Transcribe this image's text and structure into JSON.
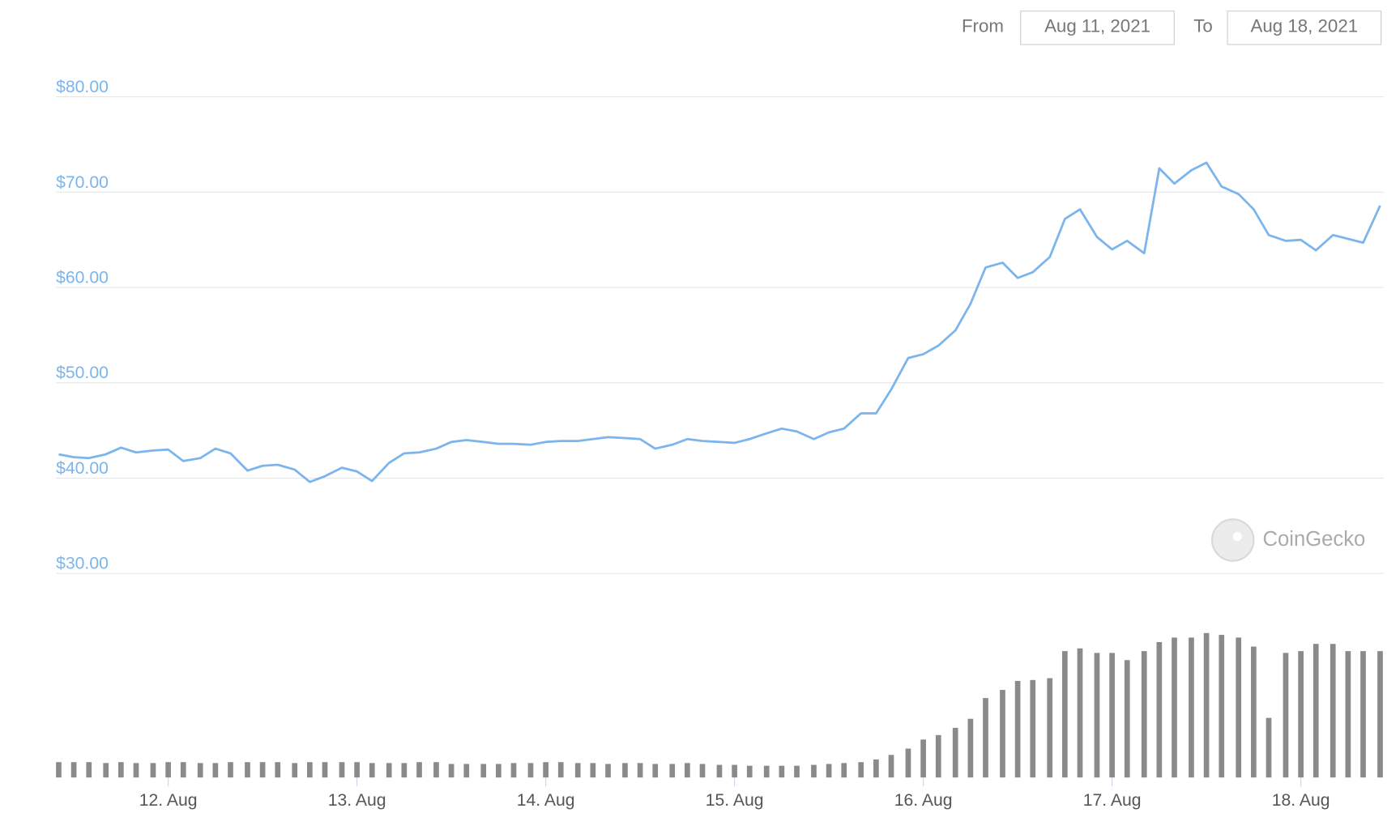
{
  "header": {
    "from_label": "From",
    "from_date": "Aug 11, 2021",
    "to_label": "To",
    "to_date": "Aug 18, 2021"
  },
  "watermark": "CoinGecko",
  "chart_data": {
    "type": "line",
    "color": "#7cb5ec",
    "volume_color": "#8a8a8a",
    "grid": true,
    "xlim": [
      11.42,
      18.42
    ],
    "xticks": [
      {
        "value": 12,
        "label": "12. Aug"
      },
      {
        "value": 13,
        "label": "13. Aug"
      },
      {
        "value": 14,
        "label": "14. Aug"
      },
      {
        "value": 15,
        "label": "15. Aug"
      },
      {
        "value": 16,
        "label": "16. Aug"
      },
      {
        "value": 17,
        "label": "17. Aug"
      },
      {
        "value": 18,
        "label": "18. Aug"
      }
    ],
    "ylim": [
      30,
      80
    ],
    "yticks": [
      {
        "value": 30,
        "label": "$30.00"
      },
      {
        "value": 40,
        "label": "$40.00"
      },
      {
        "value": 50,
        "label": "$50.00"
      },
      {
        "value": 60,
        "label": "$60.00"
      },
      {
        "value": 70,
        "label": "$70.00"
      },
      {
        "value": 80,
        "label": "$80.00"
      }
    ],
    "x": [
      11.42,
      11.5,
      11.58,
      11.67,
      11.75,
      11.83,
      11.92,
      12,
      12.08,
      12.17,
      12.25,
      12.33,
      12.42,
      12.5,
      12.58,
      12.67,
      12.75,
      12.83,
      12.92,
      13,
      13.08,
      13.17,
      13.25,
      13.33,
      13.42,
      13.5,
      13.58,
      13.67,
      13.75,
      13.83,
      13.92,
      14,
      14.08,
      14.17,
      14.25,
      14.33,
      14.42,
      14.5,
      14.58,
      14.67,
      14.75,
      14.83,
      14.92,
      15,
      15.08,
      15.17,
      15.25,
      15.33,
      15.42,
      15.5,
      15.58,
      15.67,
      15.75,
      15.83,
      15.92,
      16,
      16.08,
      16.17,
      16.25,
      16.33,
      16.42,
      16.5,
      16.58,
      16.67,
      16.75,
      16.83,
      16.92,
      17,
      17.08,
      17.17,
      17.25,
      17.33,
      17.42,
      17.5,
      17.58,
      17.67,
      17.75,
      17.83,
      17.92,
      18,
      18.08,
      18.17,
      18.25,
      18.33,
      18.42
    ],
    "values": [
      42.5,
      42.2,
      42.1,
      42.5,
      43.2,
      42.7,
      42.9,
      43.0,
      41.8,
      42.1,
      43.1,
      42.6,
      40.8,
      41.3,
      41.4,
      40.9,
      39.6,
      40.2,
      41.1,
      40.7,
      39.7,
      41.6,
      42.6,
      42.7,
      43.1,
      43.8,
      44.0,
      43.8,
      43.6,
      43.6,
      43.5,
      43.8,
      43.9,
      43.9,
      44.1,
      44.3,
      44.2,
      44.1,
      43.1,
      43.5,
      44.1,
      43.9,
      43.8,
      43.7,
      44.1,
      44.7,
      45.2,
      44.9,
      44.1,
      44.8,
      45.2,
      46.8,
      46.8,
      49.3,
      52.6,
      53.0,
      53.9,
      55.5,
      58.3,
      62.1,
      62.6,
      61.0,
      61.6,
      63.2,
      67.2,
      68.2,
      65.3,
      64.0,
      64.9,
      63.6,
      72.5,
      70.9,
      72.3,
      73.1,
      70.6,
      69.8,
      68.2,
      65.5,
      64.9,
      65.0,
      63.9,
      65.5,
      65.1,
      64.7,
      68.6
    ],
    "volume_ylim": [
      0,
      180
    ],
    "volume": [
      17,
      17,
      17,
      16,
      17,
      16,
      16,
      17,
      17,
      16,
      16,
      17,
      17,
      17,
      17,
      16,
      17,
      17,
      17,
      17,
      16,
      16,
      16,
      17,
      17,
      15,
      15,
      15,
      15,
      16,
      16,
      17,
      17,
      16,
      16,
      15,
      16,
      16,
      15,
      15,
      16,
      15,
      14,
      14,
      13,
      13,
      13,
      13,
      14,
      15,
      16,
      17,
      20,
      25,
      32,
      42,
      47,
      55,
      65,
      88,
      97,
      107,
      108,
      110,
      140,
      143,
      138,
      138,
      130,
      140,
      150,
      155,
      155,
      160,
      158,
      155,
      145,
      66,
      138,
      140,
      148,
      148,
      140,
      140,
      140
    ]
  }
}
